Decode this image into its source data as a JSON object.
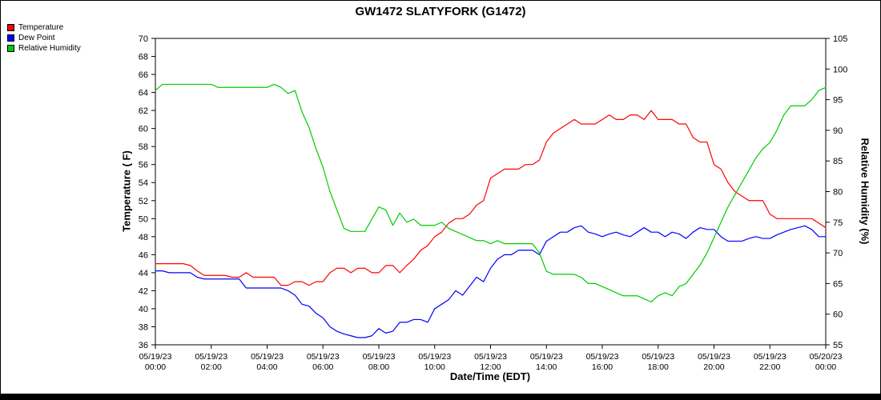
{
  "chart_data": {
    "type": "line",
    "title": "GW1472 SLATYFORK (G1472)",
    "xlabel": "Date/Time (EDT)",
    "y_left": {
      "label": "Temperature ( F)",
      "min": 36,
      "max": 70,
      "step": 2
    },
    "y_right": {
      "label": "Relative Humidity (%)",
      "min": 55,
      "max": 105,
      "step": 5
    },
    "x": {
      "min_hours": 0,
      "max_hours": 24,
      "sample_step_hours": 0.25,
      "tick_every_hours": 2
    },
    "x_ticks": [
      {
        "date": "05/19/23",
        "time": "00:00"
      },
      {
        "date": "05/19/23",
        "time": "02:00"
      },
      {
        "date": "05/19/23",
        "time": "04:00"
      },
      {
        "date": "05/19/23",
        "time": "06:00"
      },
      {
        "date": "05/19/23",
        "time": "08:00"
      },
      {
        "date": "05/19/23",
        "time": "10:00"
      },
      {
        "date": "05/19/23",
        "time": "12:00"
      },
      {
        "date": "05/19/23",
        "time": "14:00"
      },
      {
        "date": "05/19/23",
        "time": "16:00"
      },
      {
        "date": "05/19/23",
        "time": "18:00"
      },
      {
        "date": "05/19/23",
        "time": "20:00"
      },
      {
        "date": "05/19/23",
        "time": "22:00"
      },
      {
        "date": "05/20/23",
        "time": "00:00"
      }
    ],
    "grid": false,
    "legend_position": "top-left",
    "series": [
      {
        "name": "Temperature",
        "color": "#ff0000",
        "axis": "left",
        "values": [
          45,
          45,
          45,
          45,
          45,
          44.8,
          44.2,
          43.7,
          43.7,
          43.7,
          43.7,
          43.5,
          43.5,
          44,
          43.5,
          43.5,
          43.5,
          43.5,
          42.6,
          42.6,
          43,
          43,
          42.6,
          43,
          43,
          44,
          44.5,
          44.5,
          44,
          44.5,
          44.5,
          44,
          44,
          44.8,
          44.8,
          44,
          44.8,
          45.5,
          46.5,
          47,
          48,
          48.5,
          49.5,
          50,
          50,
          50.5,
          51.5,
          52,
          54.5,
          55,
          55.5,
          55.5,
          55.5,
          56,
          56,
          56.5,
          58.5,
          59.5,
          60,
          60.5,
          61,
          60.5,
          60.5,
          60.5,
          61,
          61.5,
          61,
          61,
          61.5,
          61.5,
          61,
          62,
          61,
          61,
          61,
          60.5,
          60.5,
          59,
          58.5,
          58.5,
          56,
          55.5,
          54,
          53,
          52.5,
          52,
          52,
          52,
          50.5,
          50,
          50,
          50,
          50,
          50,
          50,
          49.5,
          49
        ]
      },
      {
        "name": "Dew Point",
        "color": "#0000ff",
        "axis": "left",
        "values": [
          44.2,
          44.2,
          44,
          44,
          44,
          44,
          43.5,
          43.3,
          43.3,
          43.3,
          43.3,
          43.3,
          43.3,
          42.3,
          42.3,
          42.3,
          42.3,
          42.3,
          42.3,
          42,
          41.5,
          40.5,
          40.3,
          39.5,
          39,
          38,
          37.5,
          37.2,
          37,
          36.8,
          36.8,
          37,
          37.8,
          37.3,
          37.5,
          38.5,
          38.5,
          38.8,
          38.8,
          38.5,
          40,
          40.5,
          41,
          42,
          41.5,
          42.5,
          43.5,
          43,
          44.5,
          45.5,
          46,
          46,
          46.5,
          46.5,
          46.5,
          46,
          47.5,
          48,
          48.5,
          48.5,
          49,
          49.2,
          48.5,
          48.3,
          48,
          48.3,
          48.5,
          48.2,
          48,
          48.5,
          49,
          48.5,
          48.5,
          48,
          48.5,
          48.3,
          47.8,
          48.5,
          49,
          48.8,
          48.8,
          48,
          47.5,
          47.5,
          47.5,
          47.8,
          48,
          47.8,
          47.8,
          48.2,
          48.5,
          48.8,
          49,
          49.2,
          48.8,
          48,
          48
        ]
      },
      {
        "name": "Relative Humidity",
        "color": "#00cc00",
        "axis": "right",
        "values": [
          96.5,
          97.5,
          97.5,
          97.5,
          97.5,
          97.5,
          97.5,
          97.5,
          97.5,
          97,
          97,
          97,
          97,
          97,
          97,
          97,
          97,
          97.5,
          97,
          96,
          96.5,
          93,
          90.5,
          87,
          84,
          80,
          77,
          74,
          73.5,
          73.5,
          73.5,
          75.5,
          77.5,
          77,
          74.5,
          76.5,
          75,
          75.5,
          74.5,
          74.5,
          74.5,
          75,
          74,
          73.5,
          73,
          72.5,
          72,
          72,
          71.5,
          72,
          71.5,
          71.5,
          71.5,
          71.5,
          71.5,
          70,
          67,
          66.5,
          66.5,
          66.5,
          66.5,
          66,
          65,
          65,
          64.5,
          64,
          63.5,
          63,
          63,
          63,
          62.5,
          62,
          63,
          63.5,
          63,
          64.5,
          65,
          66.5,
          68,
          70,
          72.5,
          75,
          77.5,
          79.5,
          81.5,
          83.5,
          85.5,
          87,
          88,
          90,
          92.5,
          94,
          94,
          94,
          95,
          96.5,
          97
        ]
      }
    ]
  }
}
